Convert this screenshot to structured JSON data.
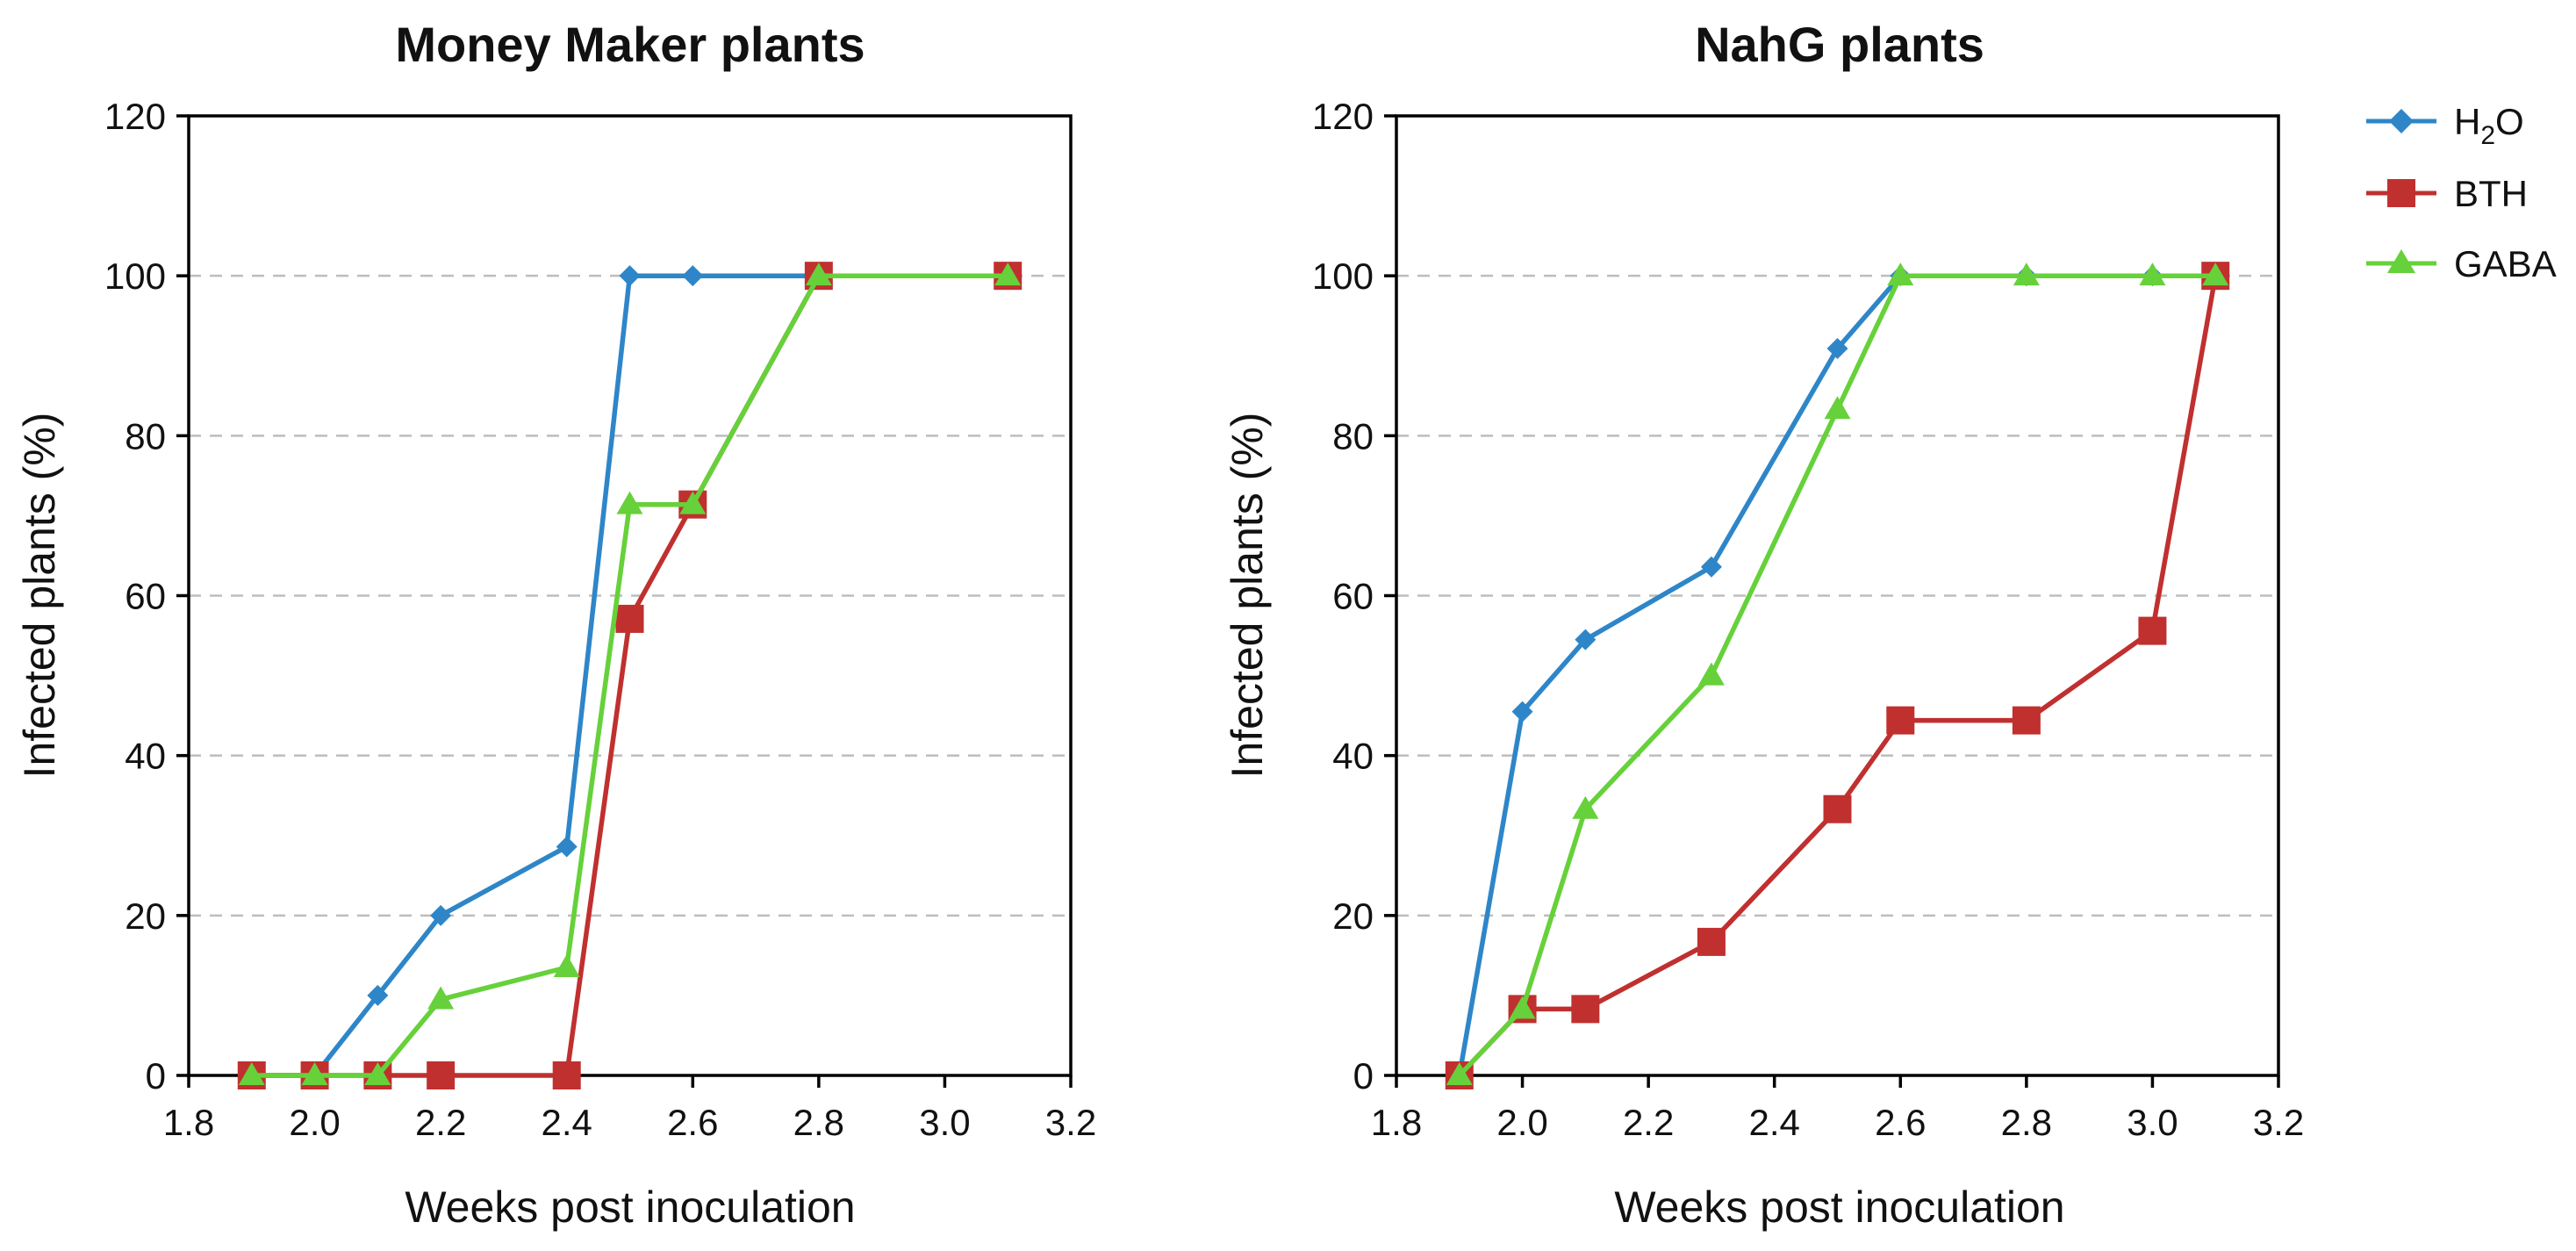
{
  "legend": {
    "entries": [
      {
        "label_main": "H",
        "label_sub": "2",
        "label_tail": "O",
        "color": "#2e86c8",
        "marker": "diamond"
      },
      {
        "label_main": "BTH",
        "label_sub": "",
        "label_tail": "",
        "color": "#c0302f",
        "marker": "square"
      },
      {
        "label_main": "GABA",
        "label_sub": "",
        "label_tail": "",
        "color": "#66d13a",
        "marker": "triangle"
      }
    ],
    "position": "right"
  },
  "chart_data": [
    {
      "type": "line",
      "title": "Money Maker plants",
      "xlabel": "Weeks post inoculation",
      "ylabel": "Infected plants (%)",
      "xlim": [
        1.8,
        3.2
      ],
      "ylim": [
        0,
        120
      ],
      "xticks": [
        "1.8",
        "2.0",
        "2.2",
        "2.4",
        "2.6",
        "2.8",
        "3.0",
        "3.2"
      ],
      "yticks": [
        "0",
        "20",
        "40",
        "60",
        "80",
        "100",
        "120"
      ],
      "grid": "horizontal dashed",
      "series": [
        {
          "name": "H2O",
          "color": "#2e86c8",
          "marker": "diamond",
          "x": [
            1.9,
            2.0,
            2.1,
            2.2,
            2.4,
            2.5,
            2.6,
            2.8,
            3.1
          ],
          "y": [
            0,
            0,
            10,
            20,
            28.6,
            100,
            100,
            100,
            100
          ]
        },
        {
          "name": "BTH",
          "color": "#c0302f",
          "marker": "square",
          "x": [
            1.9,
            2.0,
            2.1,
            2.2,
            2.4,
            2.5,
            2.6,
            2.8,
            3.1
          ],
          "y": [
            0,
            0,
            0,
            0,
            0,
            57.1,
            71.4,
            100,
            100
          ]
        },
        {
          "name": "GABA",
          "color": "#66d13a",
          "marker": "triangle",
          "x": [
            1.9,
            2.0,
            2.1,
            2.2,
            2.4,
            2.5,
            2.6,
            2.8,
            3.1
          ],
          "y": [
            0,
            0,
            0,
            9.5,
            13.5,
            71.4,
            71.4,
            100,
            100
          ]
        }
      ]
    },
    {
      "type": "line",
      "title": "NahG plants",
      "xlabel": "Weeks post inoculation",
      "ylabel": "Infected plants (%)",
      "xlim": [
        1.8,
        3.2
      ],
      "ylim": [
        0,
        120
      ],
      "xticks": [
        "1.8",
        "2.0",
        "2.2",
        "2.4",
        "2.6",
        "2.8",
        "3.0",
        "3.2"
      ],
      "yticks": [
        "0",
        "20",
        "40",
        "60",
        "80",
        "100",
        "120"
      ],
      "grid": "horizontal dashed",
      "series": [
        {
          "name": "H2O",
          "color": "#2e86c8",
          "marker": "diamond",
          "x": [
            1.9,
            2.0,
            2.1,
            2.3,
            2.5,
            2.6,
            2.8,
            3.0,
            3.1
          ],
          "y": [
            0,
            45.5,
            54.5,
            63.6,
            90.9,
            100,
            100,
            100,
            100
          ]
        },
        {
          "name": "BTH",
          "color": "#c0302f",
          "marker": "square",
          "x": [
            1.9,
            2.0,
            2.1,
            2.3,
            2.5,
            2.6,
            2.8,
            3.0,
            3.1
          ],
          "y": [
            0,
            8.3,
            8.3,
            16.7,
            33.3,
            44.4,
            44.4,
            55.6,
            100
          ]
        },
        {
          "name": "GABA",
          "color": "#66d13a",
          "marker": "triangle",
          "x": [
            1.9,
            2.0,
            2.1,
            2.3,
            2.5,
            2.6,
            2.8,
            3.0,
            3.1
          ],
          "y": [
            0,
            8.3,
            33.3,
            50,
            83.3,
            100,
            100,
            100,
            100
          ]
        }
      ]
    }
  ]
}
